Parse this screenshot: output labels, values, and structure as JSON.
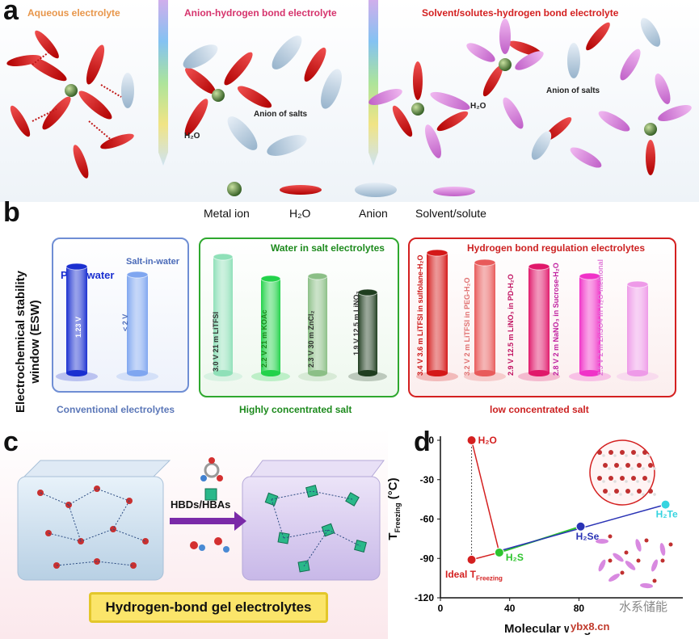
{
  "panel_a": {
    "label": "a",
    "titles": [
      "Aqueous electrolyte",
      "Anion-hydrogen bond electrolyte",
      "Solvent/solutes-hydrogen bond electrolyte"
    ],
    "mol_labels": {
      "h2o_a": "H₂O",
      "anion_b": "Anion of salts",
      "h2o_c": "H₂O",
      "anion_c": "Anion of salts"
    },
    "legend": [
      "Metal ion",
      "H₂O",
      "Anion",
      "Solvent/solute"
    ]
  },
  "panel_b": {
    "label": "b",
    "ylabel_line1": "Electrochemical stability",
    "ylabel_line2": "window (ESW)",
    "group1": {
      "caption": "Conventional electrolytes",
      "items": [
        {
          "title": "Pure water",
          "text": "1.23 V"
        },
        {
          "title": "Salt-in-water",
          "text": "< 2 V"
        }
      ]
    },
    "group2": {
      "title": "Water in salt electrolytes",
      "caption": "Highly concentrated salt",
      "items": [
        "3.0 V 21 m LiTFSI",
        "2.2 V 21 m KOAc",
        "2.3 V 30 m ZnCl₂",
        "1.9 V 12.5 m LiNO₃"
      ]
    },
    "group3": {
      "title": "Hydrogen bond regulation electrolytes",
      "caption": "low concentrated salt",
      "items": [
        "3.4 V 3.6 m LiTFSI in sulfolane-H₂O",
        "3.2 V 2 m LiTFSI in PEG-H₂O",
        "2.9 V 12.5 m LiNO₃ in PD-H₂O",
        "2.8 V 2 m NaNO₃ in Sucrose-H₂O",
        "2.5 V 2 m ZnSO4 in H₂O-methonal"
      ]
    },
    "colors": {
      "group1": [
        "#1a2fd0",
        "#7fa6f0"
      ],
      "group2": [
        "#8fe0b8",
        "#22d24a",
        "#8bbf86",
        "#1f3d1f"
      ],
      "group3": [
        "#d41818",
        "#e85a5a",
        "#e0186a",
        "#f032c8",
        "#ee9ae8"
      ]
    }
  },
  "panel_c": {
    "label": "c",
    "arrow_label": "HBDs/HBAs",
    "banner": "Hydrogen-bond gel electrolytes"
  },
  "panel_d": {
    "label": "d",
    "ylabel_main": "T",
    "ylabel_sub": "Freezing",
    "ylabel_unit": "(°C)",
    "xlabel": "Molecular weight",
    "ideal_label_main": "Ideal T",
    "ideal_label_sub": "Freezing",
    "watermark": "水系储能",
    "site": "ybx8.cn",
    "chart_data": {
      "type": "scatter",
      "xlabel": "Molecular weight",
      "ylabel": "T Freezing (°C)",
      "xlim": [
        0,
        140
      ],
      "ylim": [
        -120,
        0
      ],
      "xticks": [
        0,
        40,
        80
      ],
      "yticks": [
        0,
        -30,
        -60,
        -90,
        -120
      ],
      "points": [
        {
          "name": "H₂O",
          "x": 18,
          "y": 0,
          "color": "#d42020"
        },
        {
          "name": "H₂S",
          "x": 34,
          "y": -85.5,
          "color": "#2ec42e"
        },
        {
          "name": "H₂Se",
          "x": 81,
          "y": -65.7,
          "color": "#2a33b5"
        },
        {
          "name": "H₂Te",
          "x": 130,
          "y": -49,
          "color": "#36d4e0"
        },
        {
          "name": "Ideal T Freezing",
          "x": 18,
          "y": -91,
          "color": "#d42020"
        }
      ]
    }
  }
}
